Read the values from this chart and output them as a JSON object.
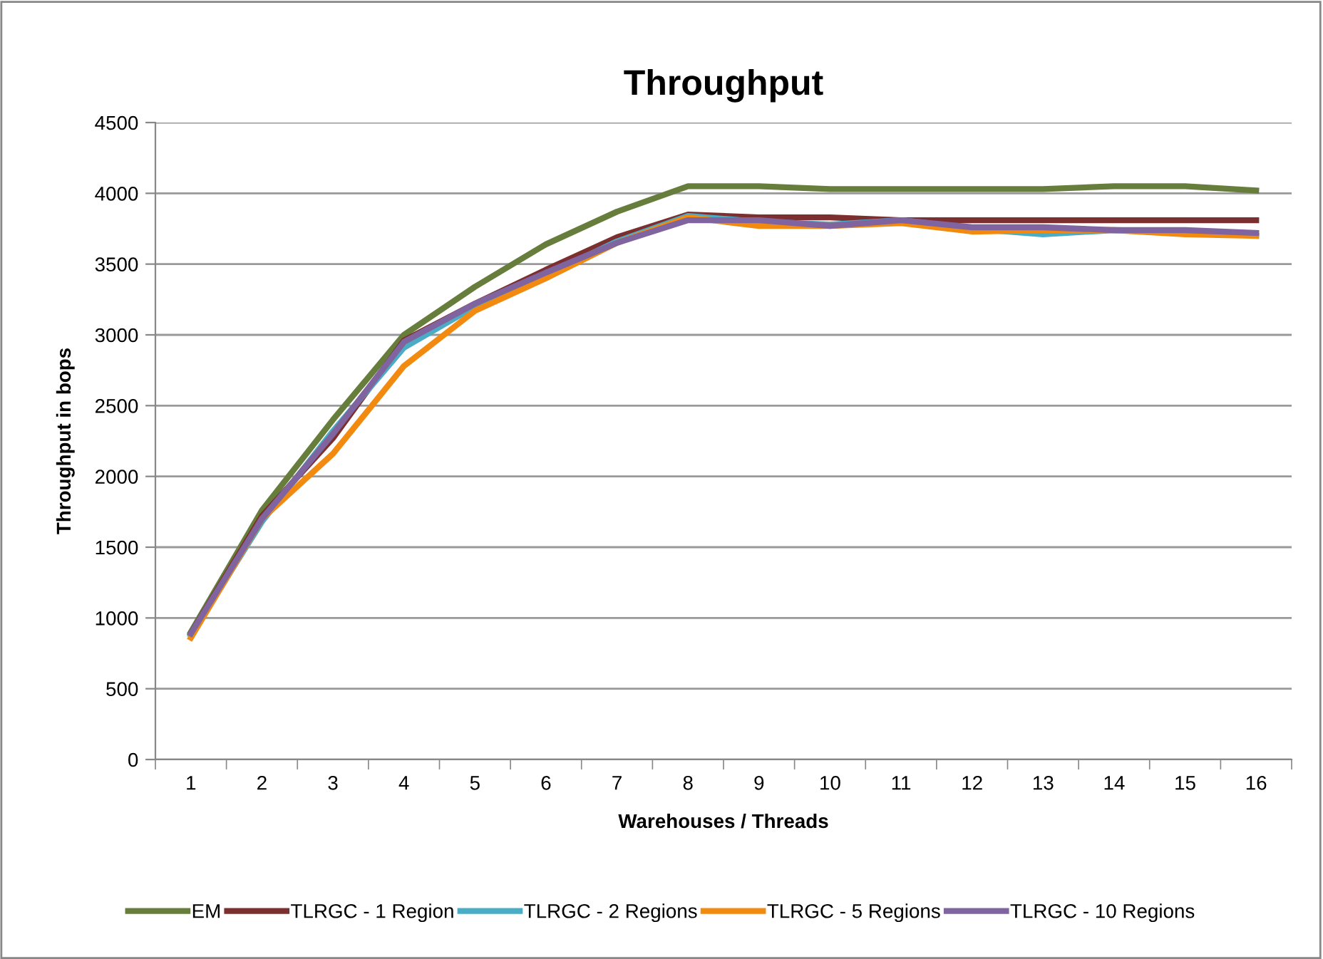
{
  "chart_data": {
    "type": "line",
    "title": "Throughput",
    "xlabel": "Warehouses / Threads",
    "ylabel": "Throughput in bops",
    "categories": [
      "1",
      "2",
      "3",
      "4",
      "5",
      "6",
      "7",
      "8",
      "9",
      "10",
      "11",
      "12",
      "13",
      "14",
      "15",
      "16"
    ],
    "series": [
      {
        "name": "EM",
        "color": "#677d3b",
        "values": [
          900,
          1760,
          2400,
          3000,
          3340,
          3640,
          3870,
          4050,
          4050,
          4030,
          4030,
          4030,
          4030,
          4050,
          4050,
          4020
        ]
      },
      {
        "name": "TLRGC - 1 Region",
        "color": "#7b2f2f",
        "values": [
          890,
          1720,
          2270,
          2960,
          3220,
          3460,
          3690,
          3850,
          3830,
          3830,
          3810,
          3810,
          3810,
          3810,
          3810,
          3810
        ]
      },
      {
        "name": "TLRGC - 2 Regions",
        "color": "#4bacc6",
        "values": [
          880,
          1680,
          2320,
          2910,
          3200,
          3420,
          3660,
          3840,
          3800,
          3780,
          3810,
          3750,
          3710,
          3740,
          3730,
          3700
        ]
      },
      {
        "name": "TLRGC - 5 Regions",
        "color": "#f38a10",
        "values": [
          860,
          1700,
          2160,
          2780,
          3170,
          3400,
          3650,
          3830,
          3770,
          3770,
          3790,
          3730,
          3740,
          3740,
          3710,
          3700
        ]
      },
      {
        "name": "TLRGC - 10 Regions",
        "color": "#7f649f",
        "values": [
          890,
          1700,
          2300,
          2950,
          3220,
          3440,
          3650,
          3810,
          3810,
          3770,
          3810,
          3760,
          3760,
          3740,
          3740,
          3720
        ]
      }
    ],
    "ylim": [
      0,
      4500
    ],
    "yticks": [
      0,
      500,
      1000,
      1500,
      2000,
      2500,
      3000,
      3500,
      4000,
      4500
    ],
    "grid": "y",
    "legend": "bottom",
    "marker": "none",
    "line_style": "solid"
  }
}
